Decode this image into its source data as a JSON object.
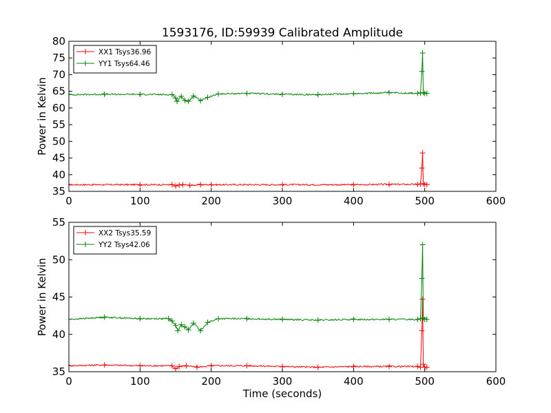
{
  "title": "1593176, ID:59939 Calibrated Amplitude",
  "chart_data": [
    {
      "type": "line",
      "title": "1593176, ID:59939 Calibrated Amplitude",
      "xlabel": "",
      "ylabel": "Power in Kelvin",
      "xlim": [
        0,
        600
      ],
      "ylim": [
        35,
        80
      ],
      "xticks": [
        "0",
        "100",
        "200",
        "300",
        "400",
        "500",
        "600"
      ],
      "yticks": [
        "35",
        "40",
        "45",
        "50",
        "55",
        "60",
        "65",
        "70",
        "75",
        "80"
      ],
      "grid": false,
      "legend_position": "top-left",
      "series": [
        {
          "name": "XX1 Tsys36.96",
          "color": "#ff0000",
          "marker": "+",
          "x": [
            0,
            100,
            145,
            150,
            155,
            160,
            170,
            185,
            200,
            300,
            400,
            450,
            490,
            494,
            496,
            497,
            498,
            500,
            503
          ],
          "y": [
            37.0,
            37.0,
            37.0,
            36.6,
            36.9,
            37.0,
            36.8,
            37.0,
            37.0,
            37.0,
            37.0,
            37.1,
            37.1,
            37.2,
            42.0,
            46.5,
            37.3,
            37.1,
            37.0
          ]
        },
        {
          "name": "YY1 Tsys64.46",
          "color": "#008000",
          "marker": "+",
          "x": [
            0,
            50,
            100,
            145,
            150,
            152,
            158,
            163,
            168,
            175,
            185,
            195,
            210,
            250,
            300,
            350,
            400,
            450,
            490,
            494,
            496,
            497,
            498,
            500,
            503
          ],
          "y": [
            64.0,
            64.1,
            64.1,
            64.0,
            63.0,
            62.0,
            63.5,
            62.3,
            62.0,
            63.6,
            62.2,
            63.2,
            64.2,
            64.4,
            64.1,
            64.0,
            64.3,
            64.6,
            64.4,
            64.5,
            71.0,
            76.5,
            64.6,
            64.4,
            64.4
          ]
        }
      ]
    },
    {
      "type": "line",
      "title": "",
      "xlabel": "Time (seconds)",
      "ylabel": "Power in Kelvin",
      "xlim": [
        0,
        600
      ],
      "ylim": [
        35,
        55
      ],
      "xticks": [
        "0",
        "100",
        "200",
        "300",
        "400",
        "500",
        "600"
      ],
      "yticks": [
        "35",
        "40",
        "45",
        "50",
        "55"
      ],
      "grid": false,
      "legend_position": "top-left",
      "series": [
        {
          "name": "XX2 Tsys35.59",
          "color": "#ff0000",
          "marker": "+",
          "x": [
            0,
            50,
            100,
            145,
            150,
            155,
            165,
            180,
            200,
            250,
            300,
            350,
            400,
            450,
            490,
            494,
            496,
            497,
            498,
            500,
            503
          ],
          "y": [
            35.8,
            35.9,
            35.8,
            35.8,
            35.4,
            35.7,
            35.8,
            35.6,
            35.8,
            35.8,
            35.7,
            35.6,
            35.7,
            35.7,
            35.7,
            35.6,
            40.5,
            44.7,
            36.0,
            35.6,
            35.6
          ]
        },
        {
          "name": "YY2 Tsys42.06",
          "color": "#008000",
          "marker": "+",
          "x": [
            0,
            50,
            100,
            140,
            145,
            150,
            153,
            158,
            163,
            168,
            175,
            185,
            195,
            210,
            250,
            300,
            350,
            400,
            450,
            490,
            494,
            496,
            497,
            498,
            500,
            503
          ],
          "y": [
            42.0,
            42.3,
            42.1,
            42.1,
            41.8,
            41.2,
            40.5,
            41.3,
            41.0,
            40.6,
            41.5,
            40.5,
            41.6,
            42.1,
            42.1,
            42.0,
            41.9,
            42.0,
            42.0,
            42.0,
            42.1,
            47.5,
            52.0,
            42.2,
            42.0,
            42.0
          ]
        }
      ]
    }
  ]
}
